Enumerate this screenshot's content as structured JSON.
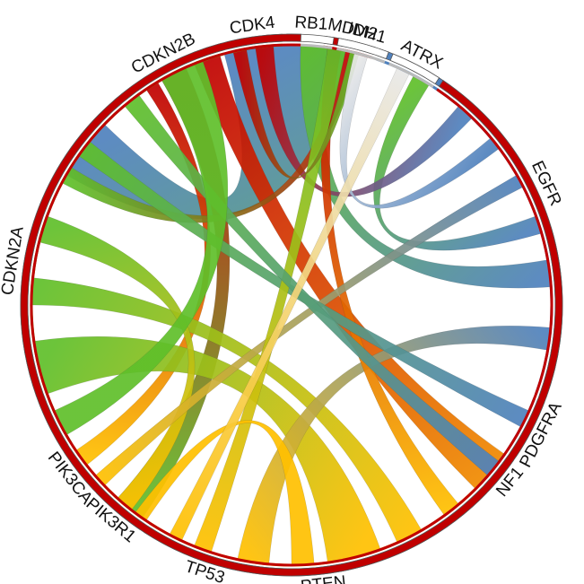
{
  "chart_data": {
    "type": "chord",
    "title": "",
    "colors": {
      "red": "#c00000",
      "blue": "#4f81bd",
      "orange": "#f08a00",
      "yellow": "#ffc000",
      "green": "#5fbf2a",
      "white": "#ffffff"
    },
    "segments": [
      {
        "id": "mdm2",
        "label": "MDM2",
        "color": "red",
        "start_deg": 7,
        "end_deg": 18
      },
      {
        "id": "egfr",
        "label": "EGFR",
        "color": "blue",
        "start_deg": 19,
        "end_deg": 110
      },
      {
        "id": "pdgfra",
        "label": "PDGFRA",
        "color": "blue",
        "start_deg": 111,
        "end_deg": 124
      },
      {
        "id": "nf1",
        "label": "NF1",
        "color": "blue",
        "start_deg": 125,
        "end_deg": 133
      },
      {
        "id": "pten",
        "label": "PTEN",
        "color": "yellow",
        "start_deg": 134,
        "end_deg": 213
      },
      {
        "id": "pik3r1",
        "label": "PIK3R1",
        "color": "yellow",
        "start_deg": 214,
        "end_deg": 226
      },
      {
        "id": "pik3ca",
        "label": "PIK3CA",
        "color": "yellow",
        "start_deg": 227,
        "end_deg": 237
      },
      {
        "id": "cdkn2a",
        "label": "CDKN2A",
        "color": "green",
        "start_deg": 238,
        "end_deg": 320
      },
      {
        "id": "cdkn2b",
        "label": "CDKN2B",
        "color": "green",
        "start_deg": 321,
        "end_deg": 345
      },
      {
        "id": "cdk4",
        "label": "CDK4",
        "color": "green",
        "start_deg": 346,
        "end_deg": 358
      },
      {
        "id": "rb1",
        "label": "RB1",
        "color": "white",
        "start_deg": 359,
        "end_deg": 369
      },
      {
        "id": "idh1",
        "label": "IDH1",
        "color": "white",
        "start_deg": 370,
        "end_deg": 381
      },
      {
        "id": "atrx",
        "label": "ATRX",
        "color": "white",
        "start_deg": 382,
        "end_deg": 393
      },
      {
        "id": "tp53",
        "label": "TP53",
        "color": "red",
        "start_deg": 394,
        "end_deg": 362
      }
    ],
    "links": [
      {
        "from": "egfr",
        "to": "cdkn2a",
        "from_span": [
          300,
          314
        ],
        "to_span": [
          345,
          372
        ],
        "gradient": [
          "blue",
          "green"
        ]
      },
      {
        "from": "tp53",
        "to": "pten",
        "from_span": [
          338,
          344
        ],
        "to_span": [
          125,
          135
        ],
        "gradient": [
          "red",
          "orange"
        ]
      },
      {
        "from": "tp53",
        "to": "cdkn2a",
        "from_span": [
          330,
          336
        ],
        "to_span": [
          215,
          222
        ],
        "gradient": [
          "red",
          "green"
        ]
      },
      {
        "from": "tp53",
        "to": "pik3ca",
        "from_span": [
          326,
          329
        ],
        "to_span": [
          232,
          236
        ],
        "gradient": [
          "red",
          "yellow"
        ]
      },
      {
        "from": "egfr",
        "to": "cdk4",
        "from_span": [
          80,
          86
        ],
        "to_span": [
          2,
          8
        ],
        "gradient": [
          "blue",
          "green"
        ]
      },
      {
        "from": "egfr",
        "to": "cdkn2b",
        "from_span": [
          70,
          74
        ],
        "to_span": [
          28,
          32
        ],
        "gradient": [
          "blue",
          "green"
        ]
      },
      {
        "from": "pten",
        "to": "cdkn2a",
        "from_span": [
          160,
          172
        ],
        "to_span": [
          250,
          262
        ],
        "gradient": [
          "yellow",
          "green"
        ]
      },
      {
        "from": "pten",
        "to": "cdkn2b",
        "from_span": [
          150,
          156
        ],
        "to_span": [
          270,
          276
        ],
        "gradient": [
          "yellow",
          "green"
        ]
      },
      {
        "from": "pik3r1",
        "to": "cdkn2a",
        "from_span": [
          218,
          222
        ],
        "to_span": [
          284,
          290
        ],
        "gradient": [
          "yellow",
          "green"
        ]
      },
      {
        "from": "egfr",
        "to": "pten",
        "from_span": [
          95,
          100
        ],
        "to_span": [
          185,
          192
        ],
        "gradient": [
          "blue",
          "yellow"
        ]
      },
      {
        "from": "tp53",
        "to": "egfr",
        "from_span": [
          352,
          356
        ],
        "to_span": [
          40,
          44
        ],
        "gradient": [
          "red",
          "blue"
        ]
      },
      {
        "from": "mdm2",
        "to": "pten",
        "from_span": [
          8,
          11
        ],
        "to_span": [
          140,
          144
        ],
        "gradient": [
          "red",
          "yellow"
        ]
      },
      {
        "from": "mdm2",
        "to": "cdkn2a",
        "from_span": [
          12,
          15
        ],
        "to_span": [
          298,
          302
        ],
        "gradient": [
          "red",
          "green"
        ]
      },
      {
        "from": "egfr",
        "to": "pik3ca",
        "from_span": [
          60,
          63
        ],
        "to_span": [
          226,
          229
        ],
        "gradient": [
          "blue",
          "yellow"
        ]
      },
      {
        "from": "pdgfra",
        "to": "cdkn2a",
        "from_span": [
          114,
          118
        ],
        "to_span": [
          305,
          309
        ],
        "gradient": [
          "blue",
          "green"
        ]
      },
      {
        "from": "pten",
        "to": "cdk4",
        "from_span": [
          198,
          202
        ],
        "to_span": [
          8,
          12
        ],
        "gradient": [
          "yellow",
          "green"
        ]
      },
      {
        "from": "nf1",
        "to": "cdkn2b",
        "from_span": [
          127,
          131
        ],
        "to_span": [
          320,
          324
        ],
        "gradient": [
          "blue",
          "green"
        ]
      },
      {
        "from": "tp53",
        "to": "cdk4",
        "from_span": [
          347,
          350
        ],
        "to_span": [
          13,
          15
        ],
        "gradient": [
          "red",
          "green"
        ]
      },
      {
        "from": "cdkn2a",
        "to": "cdkn2b",
        "from_span": [
          240,
          246
        ],
        "to_span": [
          330,
          340
        ],
        "gradient": [
          "green",
          "green"
        ]
      },
      {
        "from": "pten",
        "to": "pik3r1",
        "from_span": [
          175,
          180
        ],
        "to_span": [
          214,
          217
        ],
        "gradient": [
          "yellow",
          "yellow"
        ]
      },
      {
        "from": "idh1",
        "to": "egfr",
        "from_span": [
          374,
          377
        ],
        "to_span": [
          50,
          53
        ],
        "gradient": [
          "white",
          "blue"
        ]
      },
      {
        "from": "atrx",
        "to": "pten",
        "from_span": [
          384,
          387
        ],
        "to_span": [
          205,
          208
        ],
        "gradient": [
          "white",
          "yellow"
        ]
      }
    ]
  }
}
